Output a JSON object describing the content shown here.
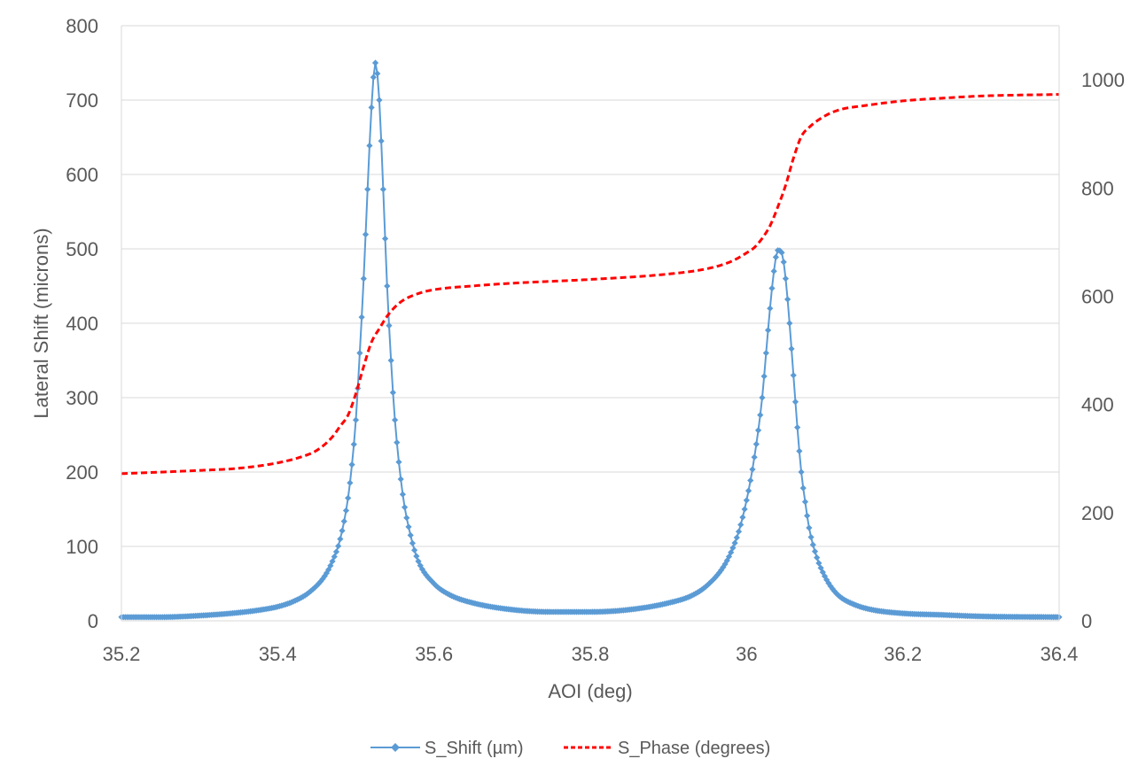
{
  "chart_data": {
    "type": "line",
    "title": "",
    "xlabel": "AOI (deg)",
    "ylabel": "Lateral Shift (microns)",
    "y2label": "",
    "xlim": [
      35.2,
      36.4
    ],
    "ylim": [
      0,
      800
    ],
    "y2lim": [
      0,
      1100
    ],
    "x_ticks": [
      "35.2",
      "35.4",
      "35.6",
      "35.8",
      "36",
      "36.2",
      "36.4"
    ],
    "y_ticks": [
      "0",
      "100",
      "200",
      "300",
      "400",
      "500",
      "600",
      "700",
      "800"
    ],
    "y2_ticks": [
      "0",
      "200",
      "400",
      "600",
      "800",
      "1000"
    ],
    "grid": "horizontal",
    "legend_position": "bottom",
    "series": [
      {
        "name": "S_Shift (µm)",
        "axis": "left",
        "color": "#5B9BD5",
        "style": "solid-diamond-markers",
        "x": [
          35.2,
          35.25,
          35.3,
          35.35,
          35.38,
          35.4,
          35.42,
          35.44,
          35.46,
          35.47,
          35.48,
          35.49,
          35.495,
          35.5,
          35.505,
          35.51,
          35.515,
          35.52,
          35.525,
          35.53,
          35.535,
          35.54,
          35.545,
          35.55,
          35.56,
          35.57,
          35.58,
          35.6,
          35.62,
          35.65,
          35.7,
          35.75,
          35.8,
          35.85,
          35.9,
          35.93,
          35.95,
          35.97,
          35.98,
          35.99,
          36,
          36.01,
          36.02,
          36.025,
          36.03,
          36.035,
          36.04,
          36.045,
          36.05,
          36.055,
          36.06,
          36.065,
          36.07,
          36.075,
          36.08,
          36.09,
          36.1,
          36.11,
          36.12,
          36.14,
          36.16,
          36.2,
          36.25,
          36.3,
          36.4
        ],
        "y": [
          5,
          5,
          7,
          11,
          15,
          19,
          26,
          38,
          60,
          80,
          110,
          165,
          210,
          270,
          360,
          460,
          580,
          690,
          750,
          700,
          580,
          450,
          350,
          270,
          170,
          115,
          80,
          50,
          35,
          24,
          15,
          12,
          12,
          15,
          24,
          34,
          48,
          72,
          92,
          120,
          162,
          220,
          300,
          360,
          420,
          470,
          498,
          495,
          460,
          400,
          330,
          260,
          200,
          160,
          125,
          85,
          60,
          43,
          32,
          21,
          15,
          10,
          8,
          6,
          5
        ]
      },
      {
        "name": "S_Phase (degrees)",
        "axis": "right",
        "color": "#FF0000",
        "style": "dashed",
        "x": [
          35.2,
          35.3,
          35.35,
          35.4,
          35.43,
          35.45,
          35.47,
          35.48,
          35.49,
          35.5,
          35.51,
          35.52,
          35.53,
          35.54,
          35.55,
          35.56,
          35.58,
          35.6,
          35.65,
          35.7,
          35.8,
          35.9,
          35.95,
          35.98,
          36,
          36.01,
          36.02,
          36.03,
          36.04,
          36.05,
          36.06,
          36.07,
          36.08,
          36.1,
          36.12,
          36.15,
          36.2,
          36.25,
          36.3,
          36.4
        ],
        "y": [
          272,
          278,
          282,
          292,
          303,
          315,
          340,
          360,
          380,
          420,
          470,
          515,
          540,
          563,
          580,
          592,
          605,
          612,
          619,
          624,
          631,
          641,
          651,
          664,
          680,
          690,
          707,
          730,
          765,
          805,
          855,
          895,
          912,
          933,
          945,
          952,
          961,
          966,
          970,
          973
        ]
      }
    ]
  }
}
